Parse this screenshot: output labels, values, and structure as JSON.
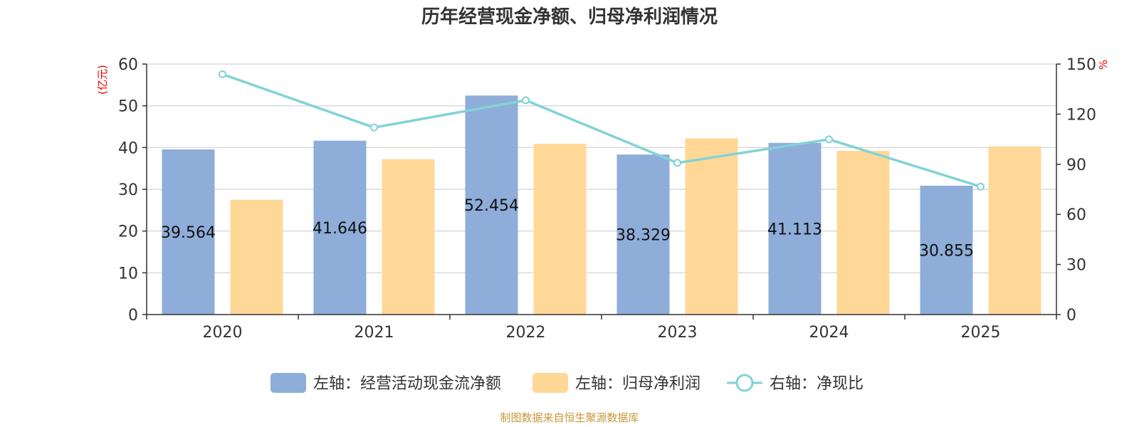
{
  "chart_data": {
    "type": "bar",
    "title": "历年经营现金净额、归母净利润情况",
    "categories": [
      "2020",
      "2021",
      "2022",
      "2023",
      "2024",
      "2025"
    ],
    "left_axis": {
      "unit": "(亿元)",
      "min": 0,
      "max": 60,
      "ticks": [
        "0",
        "10",
        "20",
        "30",
        "40",
        "50",
        "60"
      ]
    },
    "right_axis": {
      "unit": "%",
      "min": 0,
      "max": 150,
      "ticks": [
        "0",
        "30",
        "60",
        "90",
        "120",
        "150"
      ]
    },
    "series": [
      {
        "name": "左轴：经营活动现金流净额",
        "type": "bar",
        "axis": "left",
        "color": "#8eadd9",
        "values": [
          39.564,
          41.646,
          52.454,
          38.329,
          41.113,
          30.855
        ],
        "labels": [
          "39.564",
          "41.646",
          "52.454",
          "38.329",
          "41.113",
          "30.855"
        ]
      },
      {
        "name": "左轴：归母净利润",
        "type": "bar",
        "axis": "left",
        "color": "#ffd898",
        "values": [
          27.5,
          37.2,
          40.9,
          42.2,
          39.2,
          40.3
        ]
      },
      {
        "name": "右轴：净现比",
        "type": "line",
        "axis": "right",
        "color": "#82d3d6",
        "values": [
          143.9,
          112.0,
          128.3,
          90.8,
          104.9,
          76.6
        ]
      }
    ],
    "grid": true,
    "legend_position": "bottom"
  },
  "footer": {
    "source": "制图数据来自恒生聚源数据库"
  }
}
